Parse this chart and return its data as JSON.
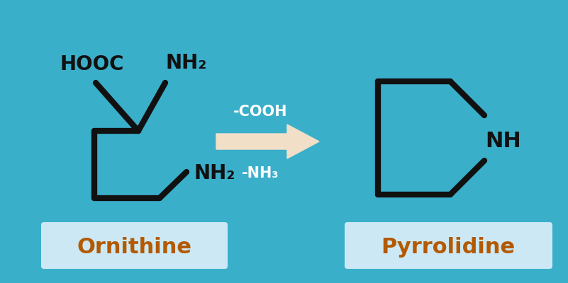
{
  "bg_color": "#3aafca",
  "bond_color": "#111111",
  "bond_lw": 6.0,
  "label_fontsize": 17,
  "name_color": "#b35900",
  "name_fontsize": 22,
  "box_facecolor": "#cce8f4",
  "arrow_color": "#f2dfc8",
  "arrow_text_color": "#ffffff",
  "arrow_text_fontsize": 15,
  "ornithine_label": "Ornithine",
  "pyrrolidine_label": "Pyrrolidine",
  "reaction_text1": "-COOH",
  "reaction_text2": "-NH₃",
  "hooc_text": "HOOC",
  "nh2_top_text": "NH₂",
  "nh2_bottom_text": "NH₂",
  "nh_text": "NH",
  "figw": 8.01,
  "figh": 4.0,
  "dpi": 100
}
